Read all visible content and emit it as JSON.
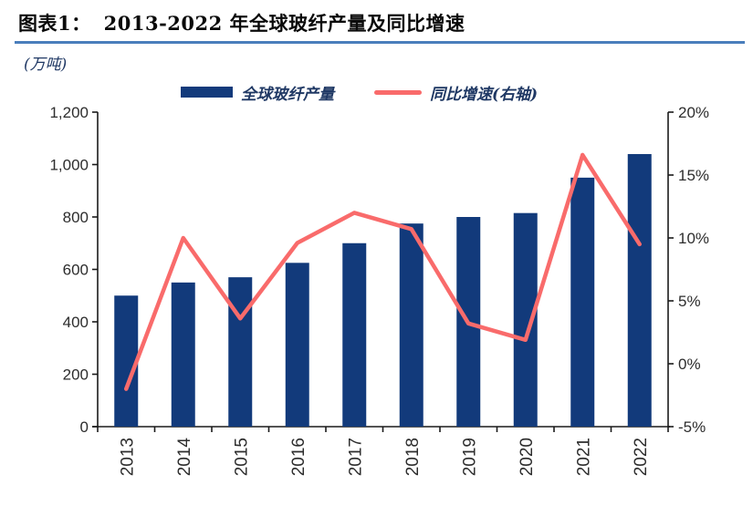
{
  "header": {
    "label": "图表1：",
    "title": "2013-2022 年全球玻纤产量及同比增速"
  },
  "legend": [
    {
      "type": "bar",
      "label": "全球玻纤产量",
      "color": "#123a7b"
    },
    {
      "type": "line",
      "label": "同比增速(右轴)",
      "color": "#f96b6b"
    }
  ],
  "chart_data": {
    "type": "bar+line",
    "title": "2013-2022 年全球玻纤产量及同比增速",
    "categories": [
      "2013",
      "2014",
      "2015",
      "2016",
      "2017",
      "2018",
      "2019",
      "2020",
      "2021",
      "2022"
    ],
    "series": [
      {
        "name": "全球玻纤产量",
        "type": "bar",
        "axis": "left",
        "values": [
          500,
          550,
          570,
          625,
          700,
          775,
          800,
          815,
          950,
          1040
        ],
        "color": "#123a7b"
      },
      {
        "name": "同比增速(右轴)",
        "type": "line",
        "axis": "right",
        "values": [
          -2.0,
          10.0,
          3.6,
          9.6,
          12.0,
          10.7,
          3.2,
          1.9,
          16.6,
          9.5
        ],
        "color": "#f96b6b"
      }
    ],
    "left_axis": {
      "min": 0,
      "max": 1200,
      "ticks": [
        0,
        200,
        400,
        600,
        800,
        1000,
        1200
      ],
      "tick_labels": [
        "0",
        "200",
        "400",
        "600",
        "800",
        "1,000",
        "1,200"
      ]
    },
    "right_axis": {
      "min": -5,
      "max": 20,
      "ticks": [
        -5,
        0,
        5,
        10,
        15,
        20
      ],
      "tick_labels": [
        "-5%",
        "0%",
        "5%",
        "10%",
        "15%",
        "20%"
      ]
    },
    "ylabel_left": "(万吨)",
    "grid": false,
    "legend_position": "top"
  },
  "colors": {
    "bar": "#123a7b",
    "line": "#f96b6b",
    "title_underline": "#4a7ebc",
    "axis": "#1a1a1a",
    "tick_label": "#2d2d2d",
    "legend_text": "#1f3864"
  }
}
